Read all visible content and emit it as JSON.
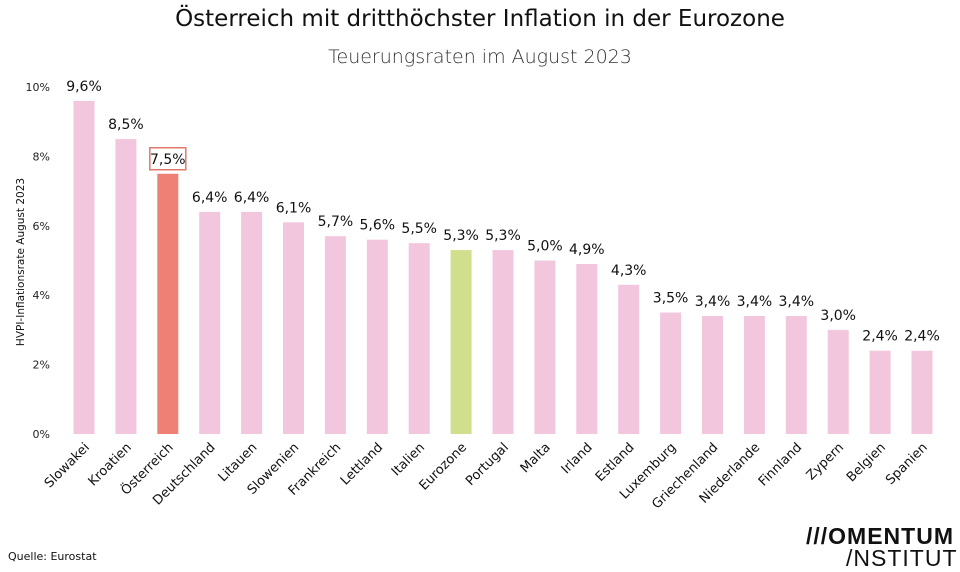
{
  "chart_data": {
    "type": "bar",
    "title": "Österreich mit dritthöchster Inflation in der Eurozone",
    "subtitle": "Teuerungsraten im August 2023",
    "ylabel": "HVPI-Inflationsrate August 2023",
    "xlabel": "",
    "ylim": [
      0,
      10
    ],
    "yticks": [
      "0%",
      "2%",
      "4%",
      "6%",
      "8%",
      "10%"
    ],
    "grid": false,
    "categories": [
      "Slowakei",
      "Kroatien",
      "Österreich",
      "Deutschland",
      "Litauen",
      "Slowenien",
      "Frankreich",
      "Lettland",
      "Italien",
      "Eurozone",
      "Portugal",
      "Malta",
      "Irland",
      "Estland",
      "Luxemburg",
      "Griechenland",
      "Niederlande",
      "Finnland",
      "Zypern",
      "Belgien",
      "Spanien"
    ],
    "values": [
      9.6,
      8.5,
      7.5,
      6.4,
      6.4,
      6.1,
      5.7,
      5.6,
      5.5,
      5.3,
      5.3,
      5.0,
      4.9,
      4.3,
      3.5,
      3.4,
      3.4,
      3.4,
      3.0,
      2.4,
      2.4
    ],
    "data_labels": [
      "9,6%",
      "8,5%",
      "7,5%",
      "6,4%",
      "6,4%",
      "6,1%",
      "5,7%",
      "5,6%",
      "5,5%",
      "5,3%",
      "5,3%",
      "5,0%",
      "4,9%",
      "4,3%",
      "3,5%",
      "3,4%",
      "3,4%",
      "3,4%",
      "3,0%",
      "2,4%",
      "2,4%"
    ],
    "highlight": {
      "Österreich": "#ef8075",
      "Eurozone": "#d0df8c"
    },
    "default_color": "#f2c6dc",
    "highlight_label_border": "#e0786c"
  },
  "source": "Quelle: Eurostat",
  "logo": {
    "line1": "///OMENTUM",
    "line2": "/NSTITUT"
  }
}
